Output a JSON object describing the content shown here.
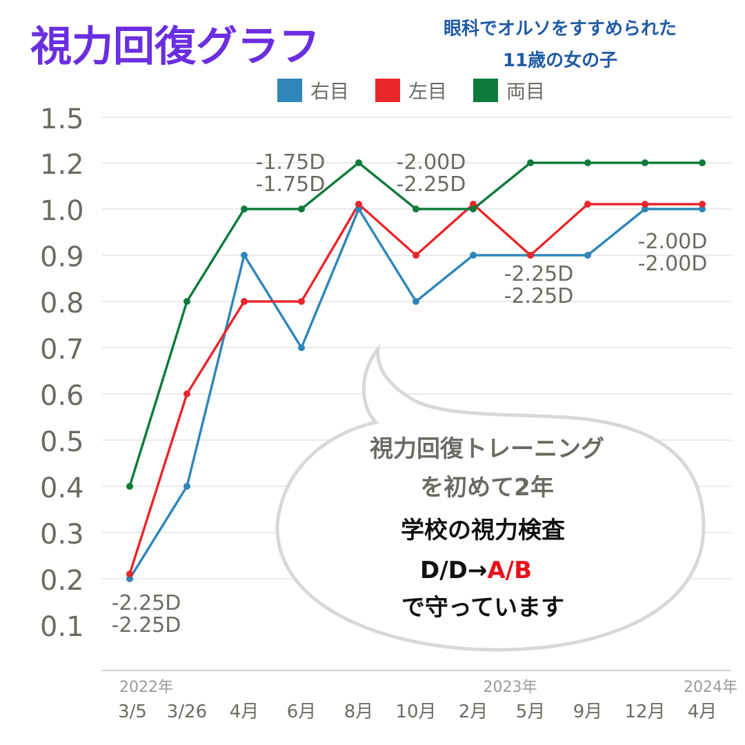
{
  "colors": {
    "title": "#6a2ee0",
    "subtitle": "#1f5aa6",
    "right_eye": "#2e86b9",
    "left_eye": "#e8262b",
    "both_eyes": "#0e7a3a",
    "axis_text": "#6b6b63",
    "grid": "#e3e3e3",
    "bubble_stroke": "#d8d8d8",
    "note_gray": "#6b6b63",
    "note_black": "#111111",
    "note_red": "#e8101a"
  },
  "chart_data": {
    "type": "line",
    "title": "視力回復グラフ",
    "subtitle": [
      "眼科でオルソをすすめられた",
      "11歳の女の子"
    ],
    "legend": [
      "右目",
      "左目",
      "両目"
    ],
    "legend_placement": "top-center",
    "grid": true,
    "ylim": [
      0,
      1.5
    ],
    "y_ticks": [
      "1.5",
      "1.2",
      "1.0",
      "0.9",
      "0.8",
      "0.7",
      "0.6",
      "0.5",
      "0.4",
      "0.3",
      "0.2",
      "0.1"
    ],
    "x_years": [
      {
        "label": "2022年",
        "index": 0
      },
      {
        "label": "2023年",
        "index": 6.5
      },
      {
        "label": "2024年",
        "index": 10
      }
    ],
    "categories": [
      "3/5",
      "3/26",
      "4月",
      "6月",
      "8月",
      "10月",
      "2月",
      "5月",
      "9月",
      "12月",
      "4月"
    ],
    "series": [
      {
        "name": "右目",
        "key": "right_eye",
        "values": [
          0.2,
          0.4,
          0.9,
          0.7,
          1.0,
          0.8,
          0.9,
          0.9,
          0.9,
          1.0,
          1.0
        ]
      },
      {
        "name": "左目",
        "key": "left_eye",
        "values": [
          0.2,
          0.6,
          0.8,
          0.8,
          1.0,
          0.9,
          1.0,
          0.9,
          1.0,
          1.0,
          1.0
        ]
      },
      {
        "name": "両目",
        "key": "both_eyes",
        "values": [
          0.4,
          0.8,
          1.0,
          1.0,
          1.2,
          1.0,
          1.0,
          1.2,
          1.2,
          1.2,
          1.2
        ]
      }
    ],
    "annotations": [
      {
        "lines": [
          "-2.25D",
          "-2.25D"
        ],
        "index": 0,
        "anchor": "bottom-left"
      },
      {
        "lines": [
          "-1.75D",
          "-1.75D"
        ],
        "index": 3,
        "anchor": "top"
      },
      {
        "lines": [
          "-2.00D",
          "-2.25D"
        ],
        "index": 5,
        "anchor": "top"
      },
      {
        "lines": [
          "-2.25D",
          "-2.25D"
        ],
        "index": 7,
        "anchor": "below"
      },
      {
        "lines": [
          "-2.00D",
          "-2.00D"
        ],
        "index": 9,
        "anchor": "below"
      }
    ]
  },
  "note": {
    "line1": "視力回復トレーニング",
    "line2": "を初めて2年",
    "line3": "学校の視力検査",
    "line4_prefix": "D/D→",
    "line4_highlight": "A/B",
    "line5": "で守っています"
  }
}
